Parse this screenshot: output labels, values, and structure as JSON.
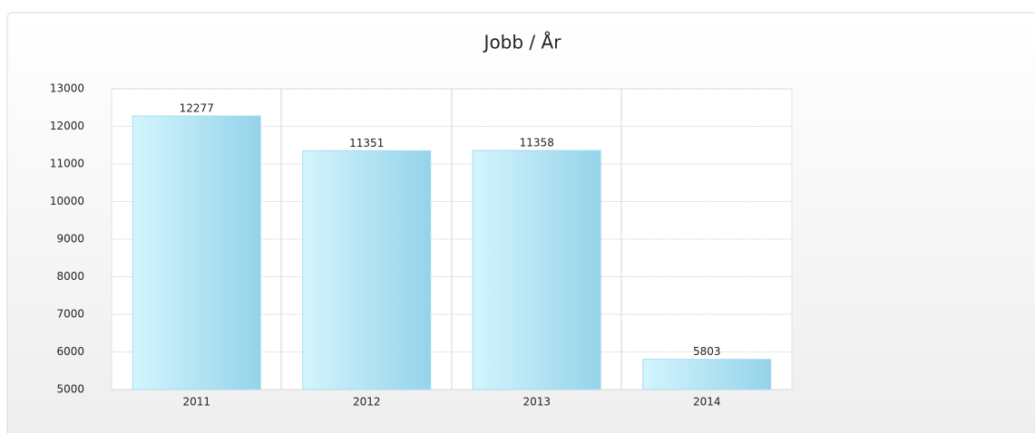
{
  "chart_data": {
    "type": "bar",
    "title": "Jobb / År",
    "categories": [
      "2011",
      "2012",
      "2013",
      "2014"
    ],
    "values": [
      12277,
      11351,
      11358,
      5803
    ],
    "color": "#a6dcf0",
    "ylim": [
      5000,
      13000
    ],
    "yticks": [
      5000,
      6000,
      7000,
      8000,
      9000,
      10000,
      11000,
      12000,
      13000
    ],
    "grid": true
  }
}
